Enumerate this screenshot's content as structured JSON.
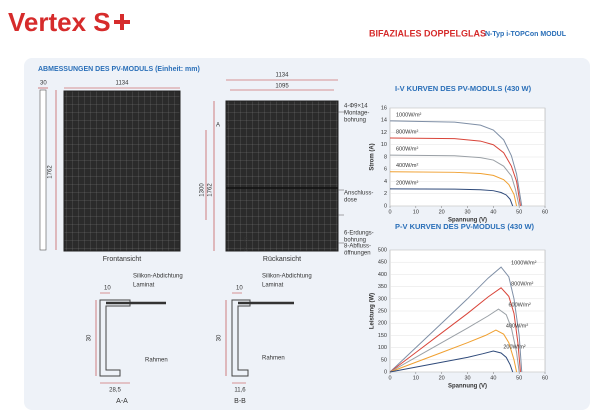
{
  "header": {
    "logo": "Vertex S",
    "product": "BIFAZIALES DOPPELGLAS",
    "subtitle": "N-Typ i-TOPCon MODUL"
  },
  "dimensions": {
    "title": "ABMESSUNGEN DES PV-MODULS (Einheit: mm)",
    "side_width": "30",
    "side_height": "1762",
    "front_width": "1134",
    "front_label": "Frontansicht",
    "rear_width": "1134",
    "rear_inner_width": "1095",
    "rear_height": "1762",
    "rear_hole_distance": "1300",
    "section_a": "A",
    "section_b": "B",
    "mounting": [
      "4-Φ9×14",
      "Montage-",
      "bohrung"
    ],
    "junction_box": [
      "Anschluss-",
      "dose"
    ],
    "grounding": [
      "6-Erdungs-",
      "bohrung"
    ],
    "drain": [
      "8-Abfluss-",
      "öffnungen"
    ],
    "rear_label": "Rückansicht"
  },
  "section_aa": {
    "top": "10",
    "sealant": "Silikon-Abdichtung",
    "laminate": "Laminat",
    "height": "30",
    "frame": "Rahmen",
    "width": "28,5",
    "label": "A-A"
  },
  "section_bb": {
    "top": "10",
    "sealant": "Silikon-Abdichtung",
    "laminate": "Laminat",
    "height": "30",
    "frame": "Rahmen",
    "width": "11,6",
    "label": "B-B"
  },
  "iv_chart": {
    "type": "line",
    "title": "I-V KURVEN DES PV-MODULS (430 W)",
    "x_label": "Spannung (V)",
    "y_label": "Strom (A)",
    "xlim": [
      0,
      60
    ],
    "xticks": [
      0,
      10,
      20,
      30,
      40,
      50,
      60
    ],
    "ylim": [
      0,
      16
    ],
    "yticks": [
      0,
      2,
      4,
      6,
      8,
      10,
      12,
      14,
      16
    ],
    "series": [
      {
        "name": "1000W/m²",
        "color": "#7f8fa6",
        "x": [
          0,
          25,
          35,
          40,
          44,
          47,
          49,
          51
        ],
        "values": [
          13.9,
          13.7,
          13.2,
          12.4,
          10.8,
          8.2,
          5.2,
          0
        ]
      },
      {
        "name": "800W/m²",
        "color": "#d9453a",
        "x": [
          0,
          25,
          35,
          40,
          44,
          47,
          49,
          50.5
        ],
        "values": [
          11.1,
          11.0,
          10.6,
          10.0,
          8.7,
          6.5,
          4.0,
          0
        ]
      },
      {
        "name": "600W/m²",
        "color": "#9aa0a6",
        "x": [
          0,
          25,
          35,
          40,
          44,
          47,
          48.5,
          50
        ],
        "values": [
          8.3,
          8.2,
          7.9,
          7.5,
          6.5,
          4.9,
          2.8,
          0
        ]
      },
      {
        "name": "400W/m²",
        "color": "#f0a030",
        "x": [
          0,
          25,
          35,
          40,
          44,
          46,
          48,
          49
        ],
        "values": [
          5.6,
          5.5,
          5.3,
          5.0,
          4.3,
          3.5,
          1.9,
          0
        ]
      },
      {
        "name": "200W/m²",
        "color": "#2f4a7a",
        "x": [
          0,
          25,
          35,
          40,
          43,
          45,
          46.5,
          47.5
        ],
        "values": [
          2.8,
          2.75,
          2.65,
          2.5,
          2.2,
          1.8,
          1.1,
          0
        ]
      }
    ]
  },
  "pv_chart": {
    "type": "line",
    "title": "P-V KURVEN DES PV-MODULS (430 W)",
    "x_label": "Spannung (V)",
    "y_label": "Leistung (W)",
    "xlim": [
      0,
      60
    ],
    "xticks": [
      0,
      10,
      20,
      30,
      40,
      50,
      60
    ],
    "ylim": [
      0,
      500
    ],
    "yticks": [
      0,
      50,
      100,
      150,
      200,
      250,
      300,
      350,
      400,
      450,
      500
    ],
    "series": [
      {
        "name": "1000W/m²",
        "color": "#7f8fa6",
        "x": [
          0,
          10,
          20,
          30,
          38,
          43,
          46,
          48,
          50,
          51
        ],
        "values": [
          0,
          100,
          200,
          300,
          385,
          430,
          390,
          300,
          150,
          0
        ]
      },
      {
        "name": "800W/m²",
        "color": "#d9453a",
        "x": [
          0,
          10,
          20,
          30,
          38,
          43,
          46,
          48,
          49.5,
          50.5
        ],
        "values": [
          0,
          80,
          160,
          240,
          308,
          345,
          310,
          240,
          120,
          0
        ]
      },
      {
        "name": "600W/m²",
        "color": "#9aa0a6",
        "x": [
          0,
          10,
          20,
          30,
          38,
          42,
          45,
          47,
          49,
          50
        ],
        "values": [
          0,
          60,
          120,
          180,
          230,
          258,
          235,
          180,
          80,
          0
        ]
      },
      {
        "name": "400W/m²",
        "color": "#f0a030",
        "x": [
          0,
          10,
          20,
          30,
          37,
          41,
          44,
          46,
          48,
          49
        ],
        "values": [
          0,
          40,
          80,
          120,
          150,
          172,
          155,
          120,
          50,
          0
        ]
      },
      {
        "name": "200W/m²",
        "color": "#2f4a7a",
        "x": [
          0,
          10,
          20,
          30,
          36,
          40,
          43,
          45,
          46.5,
          47.5
        ],
        "values": [
          0,
          20,
          40,
          60,
          75,
          86,
          78,
          60,
          30,
          0
        ]
      }
    ]
  }
}
